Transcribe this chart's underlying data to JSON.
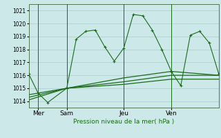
{
  "background_color": "#cce8e8",
  "grid_color": "#aacccc",
  "line_color": "#1a6b1a",
  "title": "Pression niveau de la mer( hPa )",
  "xlim": [
    0,
    20
  ],
  "ylim": [
    1013.5,
    1021.5
  ],
  "yticks": [
    1014,
    1015,
    1016,
    1017,
    1018,
    1019,
    1020,
    1021
  ],
  "xtick_positions": [
    1,
    4,
    10,
    15
  ],
  "xtick_labels": [
    "Mer",
    "Sam",
    "Jeu",
    "Ven"
  ],
  "vline_positions": [
    1,
    4,
    10,
    15
  ],
  "series": [
    {
      "x": [
        0,
        1,
        2,
        4,
        5,
        6,
        7,
        8,
        9,
        10,
        11,
        12,
        13,
        14,
        15,
        16,
        17,
        18,
        19,
        20
      ],
      "y": [
        1016.1,
        1014.6,
        1013.9,
        1015.0,
        1018.8,
        1019.4,
        1019.5,
        1018.2,
        1017.1,
        1018.1,
        1020.7,
        1020.6,
        1019.5,
        1018.0,
        1016.3,
        1015.2,
        1019.1,
        1019.4,
        1018.5,
        1016.1
      ],
      "marker": "+"
    },
    {
      "x": [
        0,
        4,
        10,
        15,
        20
      ],
      "y": [
        1014.5,
        1015.0,
        1015.8,
        1016.3,
        1016.0
      ],
      "marker": null
    },
    {
      "x": [
        0,
        4,
        10,
        15,
        20
      ],
      "y": [
        1014.3,
        1015.0,
        1015.5,
        1016.0,
        1016.0
      ],
      "marker": null
    },
    {
      "x": [
        0,
        4,
        10,
        15,
        20
      ],
      "y": [
        1014.1,
        1015.0,
        1015.3,
        1015.7,
        1015.7
      ],
      "marker": null
    }
  ],
  "fig_width": 3.2,
  "fig_height": 2.0,
  "dpi": 100
}
